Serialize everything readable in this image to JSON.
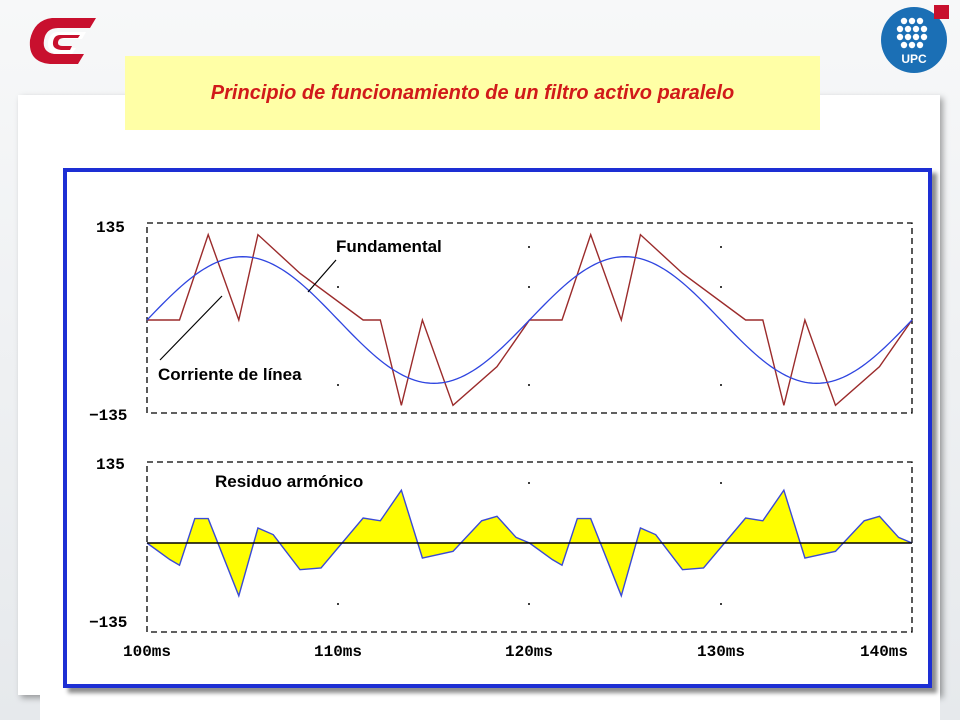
{
  "slide": {
    "title": "Principio de funcionamiento de un filtro activo paralelo",
    "logo_right_text": "UPC"
  },
  "colors": {
    "title_text": "#d11a1a",
    "title_bg": "#ffffa6",
    "frame_border": "#1d2fd4",
    "line_current": "#9b2b2b",
    "fundamental": "#2f45e0",
    "residue_fill": "#ffff00",
    "residue_line": "#3a4ad6",
    "logo_red": "#c8102e",
    "logo_blue": "#1b6fb5"
  },
  "icons": [
    "cc-logo-icon",
    "upc-logo-icon"
  ],
  "chart_data": [
    {
      "type": "line",
      "panel": "top",
      "x_unit": "ms",
      "xlim": [
        100,
        140
      ],
      "ylim": [
        -135,
        135
      ],
      "y_ticks": [
        "135",
        "−135"
      ],
      "grid": "dashed border with sparse dot grid",
      "series": [
        {
          "annotation": "Corriente de línea",
          "color": "#9b2b2b",
          "x": [
            100,
            101.7,
            103.2,
            104.8,
            105.8,
            108,
            111.3,
            112.2,
            113.3,
            114.4,
            116,
            118.3,
            120,
            121.7,
            123.2,
            124.8,
            125.8,
            128,
            131.3,
            132.2,
            133.3,
            134.4,
            136,
            138.3,
            140
          ],
          "values": [
            0,
            0,
            128,
            0,
            128,
            70,
            0,
            0,
            -128,
            0,
            -128,
            -70,
            0,
            0,
            128,
            0,
            128,
            70,
            0,
            0,
            -128,
            0,
            -128,
            -70,
            0
          ]
        },
        {
          "annotation": "Fundamental",
          "color": "#2f45e0",
          "function": "sine",
          "amplitude": 95,
          "period_ms": 20,
          "phase_ms": 100
        }
      ],
      "annotations": [
        {
          "text": "Fundamental",
          "points_to": "fundamental"
        },
        {
          "text": "Corriente de línea",
          "points_to": "line current"
        }
      ]
    },
    {
      "type": "area",
      "panel": "bottom",
      "title": "Residuo armónico",
      "x_unit": "ms",
      "xlim": [
        100,
        140
      ],
      "ylim": [
        -135,
        135
      ],
      "y_ticks": [
        "135",
        "−135"
      ],
      "x_ticks": [
        "100ms",
        "110ms",
        "120ms",
        "130ms",
        "140ms"
      ],
      "series": [
        {
          "name": "Residuo armónico",
          "fill": "#ffff00",
          "line": "#3a4ad6",
          "x": [
            100,
            101.2,
            101.7,
            102.5,
            103.2,
            104.8,
            105.8,
            106.6,
            108,
            109.1,
            111.3,
            112.2,
            113.3,
            114.4,
            116,
            117.5,
            118.3,
            119.3,
            120,
            121.2,
            121.7,
            122.5,
            123.2,
            124.8,
            125.8,
            126.6,
            128,
            129.1,
            131.3,
            132.2,
            133.3,
            134.4,
            136,
            137.5,
            138.3,
            139.3,
            140
          ],
          "values": [
            0,
            -30,
            -40,
            44,
            44,
            -95,
            27,
            15,
            -48,
            -45,
            45,
            40,
            95,
            -27,
            -15,
            40,
            48,
            10,
            0,
            -30,
            -40,
            44,
            44,
            -95,
            27,
            15,
            -48,
            -45,
            45,
            40,
            95,
            -27,
            -15,
            40,
            48,
            10,
            0
          ]
        }
      ]
    }
  ]
}
